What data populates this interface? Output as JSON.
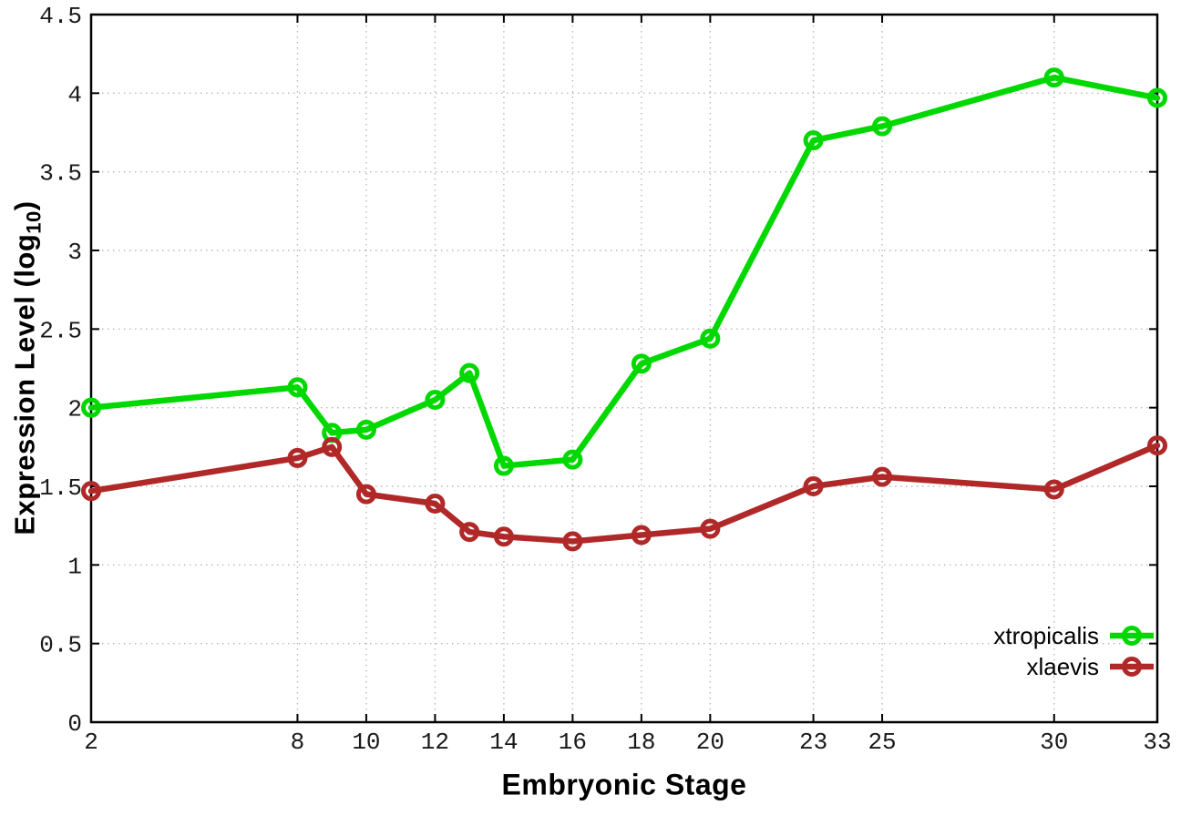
{
  "chart_data": {
    "type": "line",
    "title": "",
    "xlabel": "Embryonic Stage",
    "ylabel": {
      "prefix": "Expression Level (log",
      "subscript": "10",
      "suffix": ")"
    },
    "x": [
      2,
      8,
      9,
      10,
      12,
      13,
      14,
      16,
      18,
      20,
      23,
      25,
      30,
      33
    ],
    "x_tick_labels": [
      2,
      8,
      10,
      12,
      14,
      16,
      18,
      20,
      23,
      25,
      30,
      33
    ],
    "y_tick_labels": [
      0,
      0.5,
      1,
      1.5,
      2,
      2.5,
      3,
      3.5,
      4,
      4.5
    ],
    "xlim": [
      2,
      33
    ],
    "ylim": [
      0,
      4.5
    ],
    "grid": true,
    "legend_position": "bottom-right",
    "series": [
      {
        "name": "xtropicalis",
        "color": "#00d800",
        "values": [
          2.0,
          2.13,
          1.84,
          1.86,
          2.05,
          2.22,
          1.63,
          1.67,
          2.28,
          2.44,
          3.7,
          3.79,
          4.1,
          3.97
        ]
      },
      {
        "name": "xlaevis",
        "color": "#b02828",
        "values": [
          1.47,
          1.68,
          1.75,
          1.45,
          1.39,
          1.21,
          1.18,
          1.15,
          1.19,
          1.23,
          1.5,
          1.56,
          1.48,
          1.76
        ]
      }
    ]
  },
  "colors": {
    "background": "#ffffff",
    "grid": "#b9b9b9",
    "border": "#000000",
    "tick_label": "#1a1a1a"
  }
}
